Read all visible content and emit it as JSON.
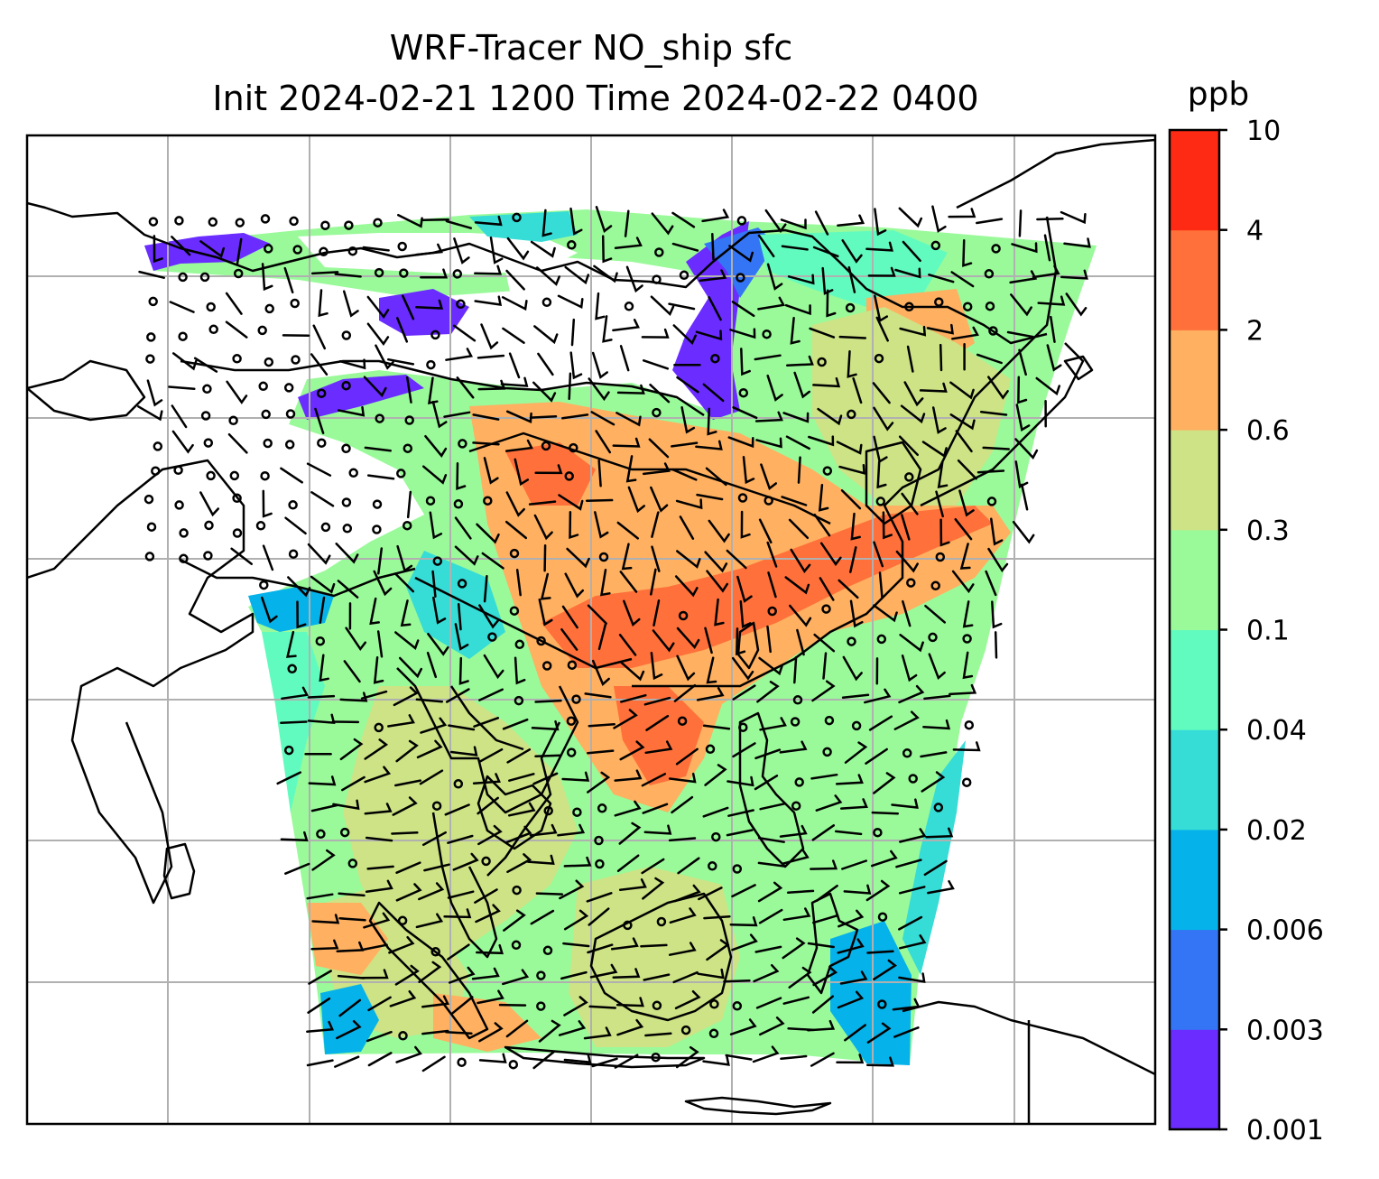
{
  "title": {
    "line1": "WRF-Tracer NO_ship sfc",
    "line2": "Init 2024-02-21 1200 Time 2024-02-22 0400"
  },
  "colorbar": {
    "unit": "ppb",
    "ticks": [
      "0.001",
      "0.003",
      "0.006",
      "0.02",
      "0.04",
      "0.1",
      "0.3",
      "0.6",
      "2",
      "4",
      "10"
    ],
    "colors": [
      "#6a2cff",
      "#3475f6",
      "#06b2ea",
      "#36dcd6",
      "#62fbbf",
      "#9afa9a",
      "#cde385",
      "#ffb060",
      "#ff703a",
      "#ff2a14"
    ]
  },
  "map": {
    "coastline_color": "#000000",
    "grid_color": "#b0b0b0",
    "wind_barb_color": "#000000"
  }
}
